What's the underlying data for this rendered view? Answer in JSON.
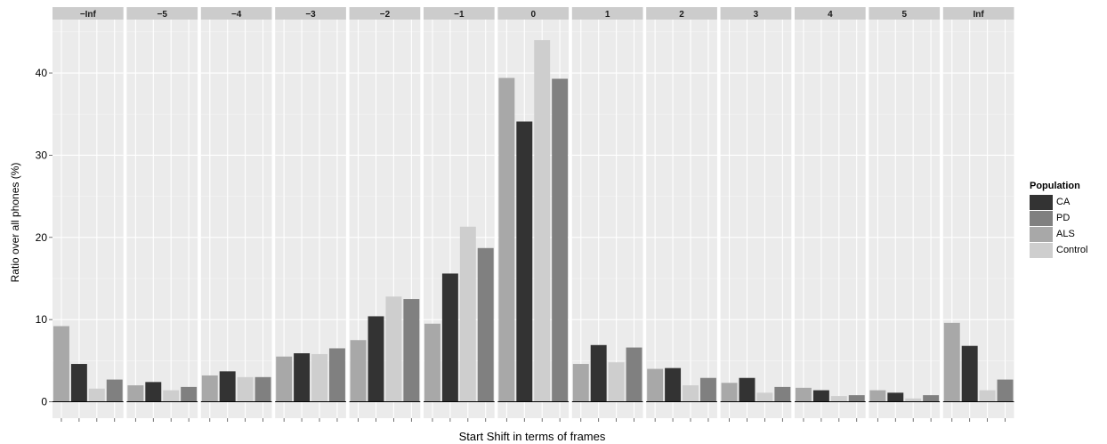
{
  "chart_data": {
    "type": "bar",
    "facets": [
      "−Inf",
      "−5",
      "−4",
      "−3",
      "−2",
      "−1",
      "0",
      "1",
      "2",
      "3",
      "4",
      "5",
      "Inf"
    ],
    "series": [
      {
        "name": "ALS",
        "color": "#a8a8a8",
        "values": [
          9.2,
          2.0,
          3.2,
          5.5,
          7.5,
          9.5,
          39.4,
          4.6,
          4.0,
          2.3,
          1.7,
          1.4,
          9.6
        ]
      },
      {
        "name": "CA",
        "color": "#333333",
        "values": [
          4.6,
          2.4,
          3.7,
          5.9,
          10.4,
          15.6,
          34.1,
          6.9,
          4.1,
          2.9,
          1.4,
          1.1,
          6.8
        ]
      },
      {
        "name": "Control",
        "color": "#cecece",
        "values": [
          1.6,
          1.4,
          3.0,
          5.8,
          12.8,
          21.3,
          44.0,
          4.8,
          2.0,
          1.1,
          0.7,
          0.4,
          1.4
        ]
      },
      {
        "name": "PD",
        "color": "#808080",
        "values": [
          2.7,
          1.8,
          3.0,
          6.5,
          12.5,
          18.7,
          39.3,
          6.6,
          2.9,
          1.8,
          0.8,
          0.8,
          2.7
        ]
      }
    ],
    "xlabel": "Start Shift in terms of frames",
    "ylabel": "Ratio over all phones (%)",
    "ylim": [
      -2,
      46.5
    ],
    "yticks": [
      0,
      10,
      20,
      30,
      40
    ],
    "grid": true,
    "legend": {
      "title": "Population",
      "position": "right",
      "order": [
        "CA",
        "PD",
        "ALS",
        "Control"
      ]
    }
  },
  "colors": {
    "panel_background": "#ebebeb",
    "strip_background": "#cccccc",
    "grid_major": "#ffffff",
    "grid_minor": "#f5f5f5"
  }
}
